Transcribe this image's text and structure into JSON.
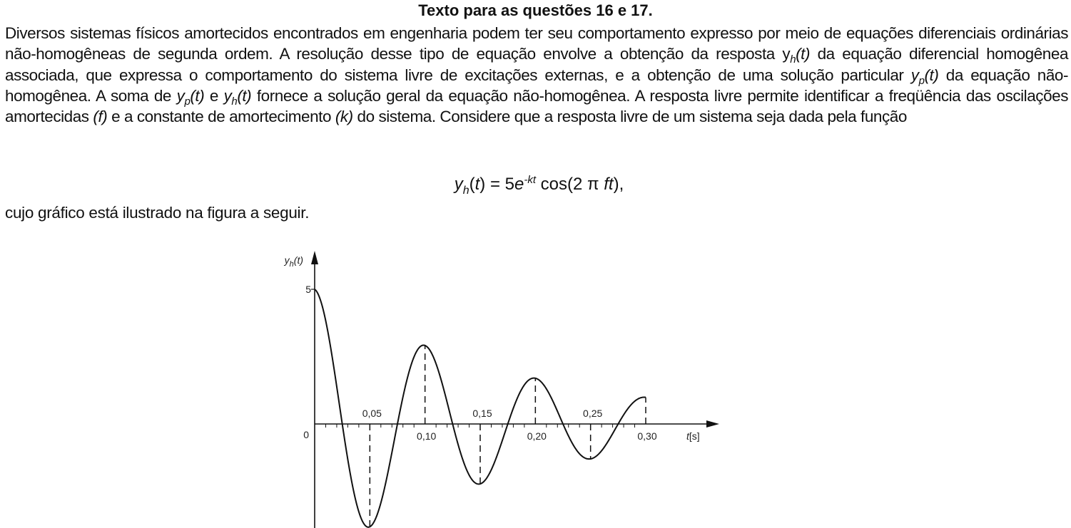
{
  "title": "Texto para as questões 16 e 17.",
  "paragraph": {
    "s1": "Diversos sistemas físicos amortecidos encontrados em engenharia podem ter seu comportamento expresso por meio de equações diferenciais ordinárias não-homogêneas de segunda ordem. A resolução desse tipo de equação envolve a obtenção da resposta y",
    "yh_sub": "h",
    "yh_arg": "(t)",
    "s2": " da equação diferencial homogênea associada, que expressa o comportamento do sistema livre de excitações externas, e a obtenção de uma solução particular ",
    "yp_y": "y",
    "yp_sub": "p",
    "yp_arg": "(t)",
    "s3": " da equação não-homogênea. A soma de ",
    "s4": " e ",
    "s5": " fornece a solução geral da equação não-homogênea. A resposta livre permite identificar a freqüência das oscilações amortecidas ",
    "f": "(f)",
    "s6": " e a constante de amortecimento ",
    "k": "(k)",
    "s7": " do sistema. Considere que a resposta livre de um sistema seja dada pela função"
  },
  "formula": {
    "lhs_y": "y",
    "lhs_sub": "h",
    "lhs_arg_open": "(",
    "lhs_t": "t",
    "lhs_arg_close": ")",
    "eq": " = 5",
    "e": "e",
    "exp": "-kt",
    "cos": " cos(2 π ",
    "ft": "ft",
    "close": "),"
  },
  "caption": "cujo gráfico está ilustrado na figura a seguir.",
  "chart_data": {
    "type": "line",
    "function": "y = 5·exp(-k·t)·cos(2π·f·t)",
    "f": 10,
    "k": 5.4,
    "xlim": [
      0,
      0.3
    ],
    "ylim": [
      -3,
      5
    ],
    "ylabel_y": "y",
    "ylabel_sub": "h",
    "ylabel_arg": "(t)",
    "xlabel_t": "t",
    "xlabel_unit": "[s]",
    "y_ticks": [
      "5",
      "0"
    ],
    "x_labels_above": [
      "0,05",
      "0,15",
      "0,25"
    ],
    "x_labels_below": [
      "0,10",
      "0,20",
      "0,30"
    ],
    "extrema_x": [
      0.05,
      0.1,
      0.15,
      0.2,
      0.25,
      0.3
    ],
    "grid": false
  }
}
